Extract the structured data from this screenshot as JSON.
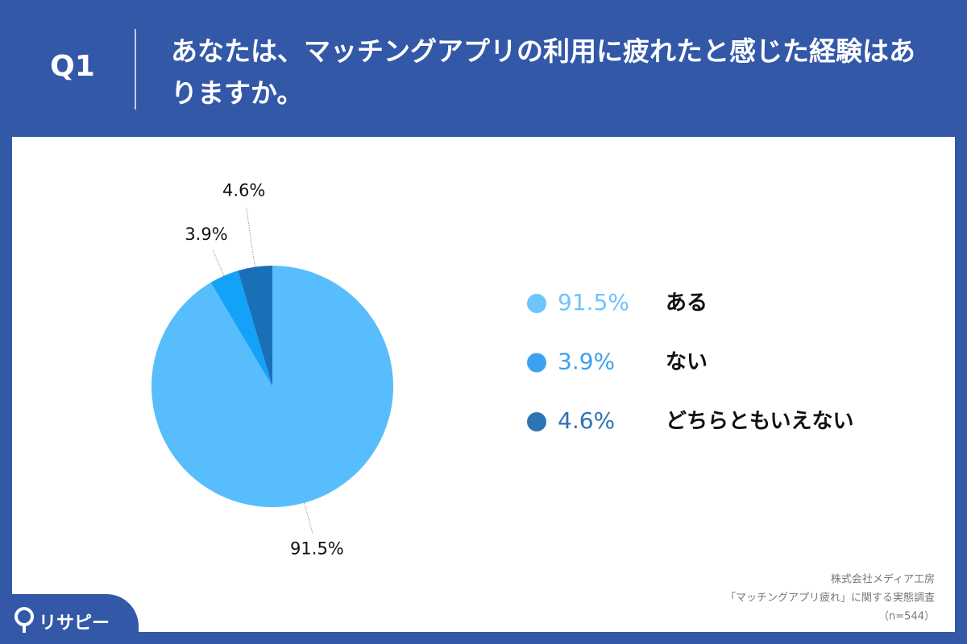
{
  "chart_data": {
    "type": "pie",
    "question_label": "Q1",
    "title": "あなたは、マッチングアプリの利用に疲れたと感じた経験はありますか。",
    "categories": [
      "ある",
      "ない",
      "どちらともいえない"
    ],
    "values": [
      91.5,
      3.9,
      4.6
    ],
    "value_labels": [
      "91.5%",
      "3.9%",
      "4.6%"
    ],
    "colors": [
      "#58bdfc",
      "#14a2f8",
      "#1a70b7"
    ],
    "legend_colors": [
      "#6cc5fb",
      "#3ba2ef",
      "#2e73b4"
    ],
    "source": [
      "株式会社メディア工房",
      "「マッチングアプリ疲れ」に関する実態調査",
      "（n=544）"
    ],
    "logo": "リサピー"
  }
}
